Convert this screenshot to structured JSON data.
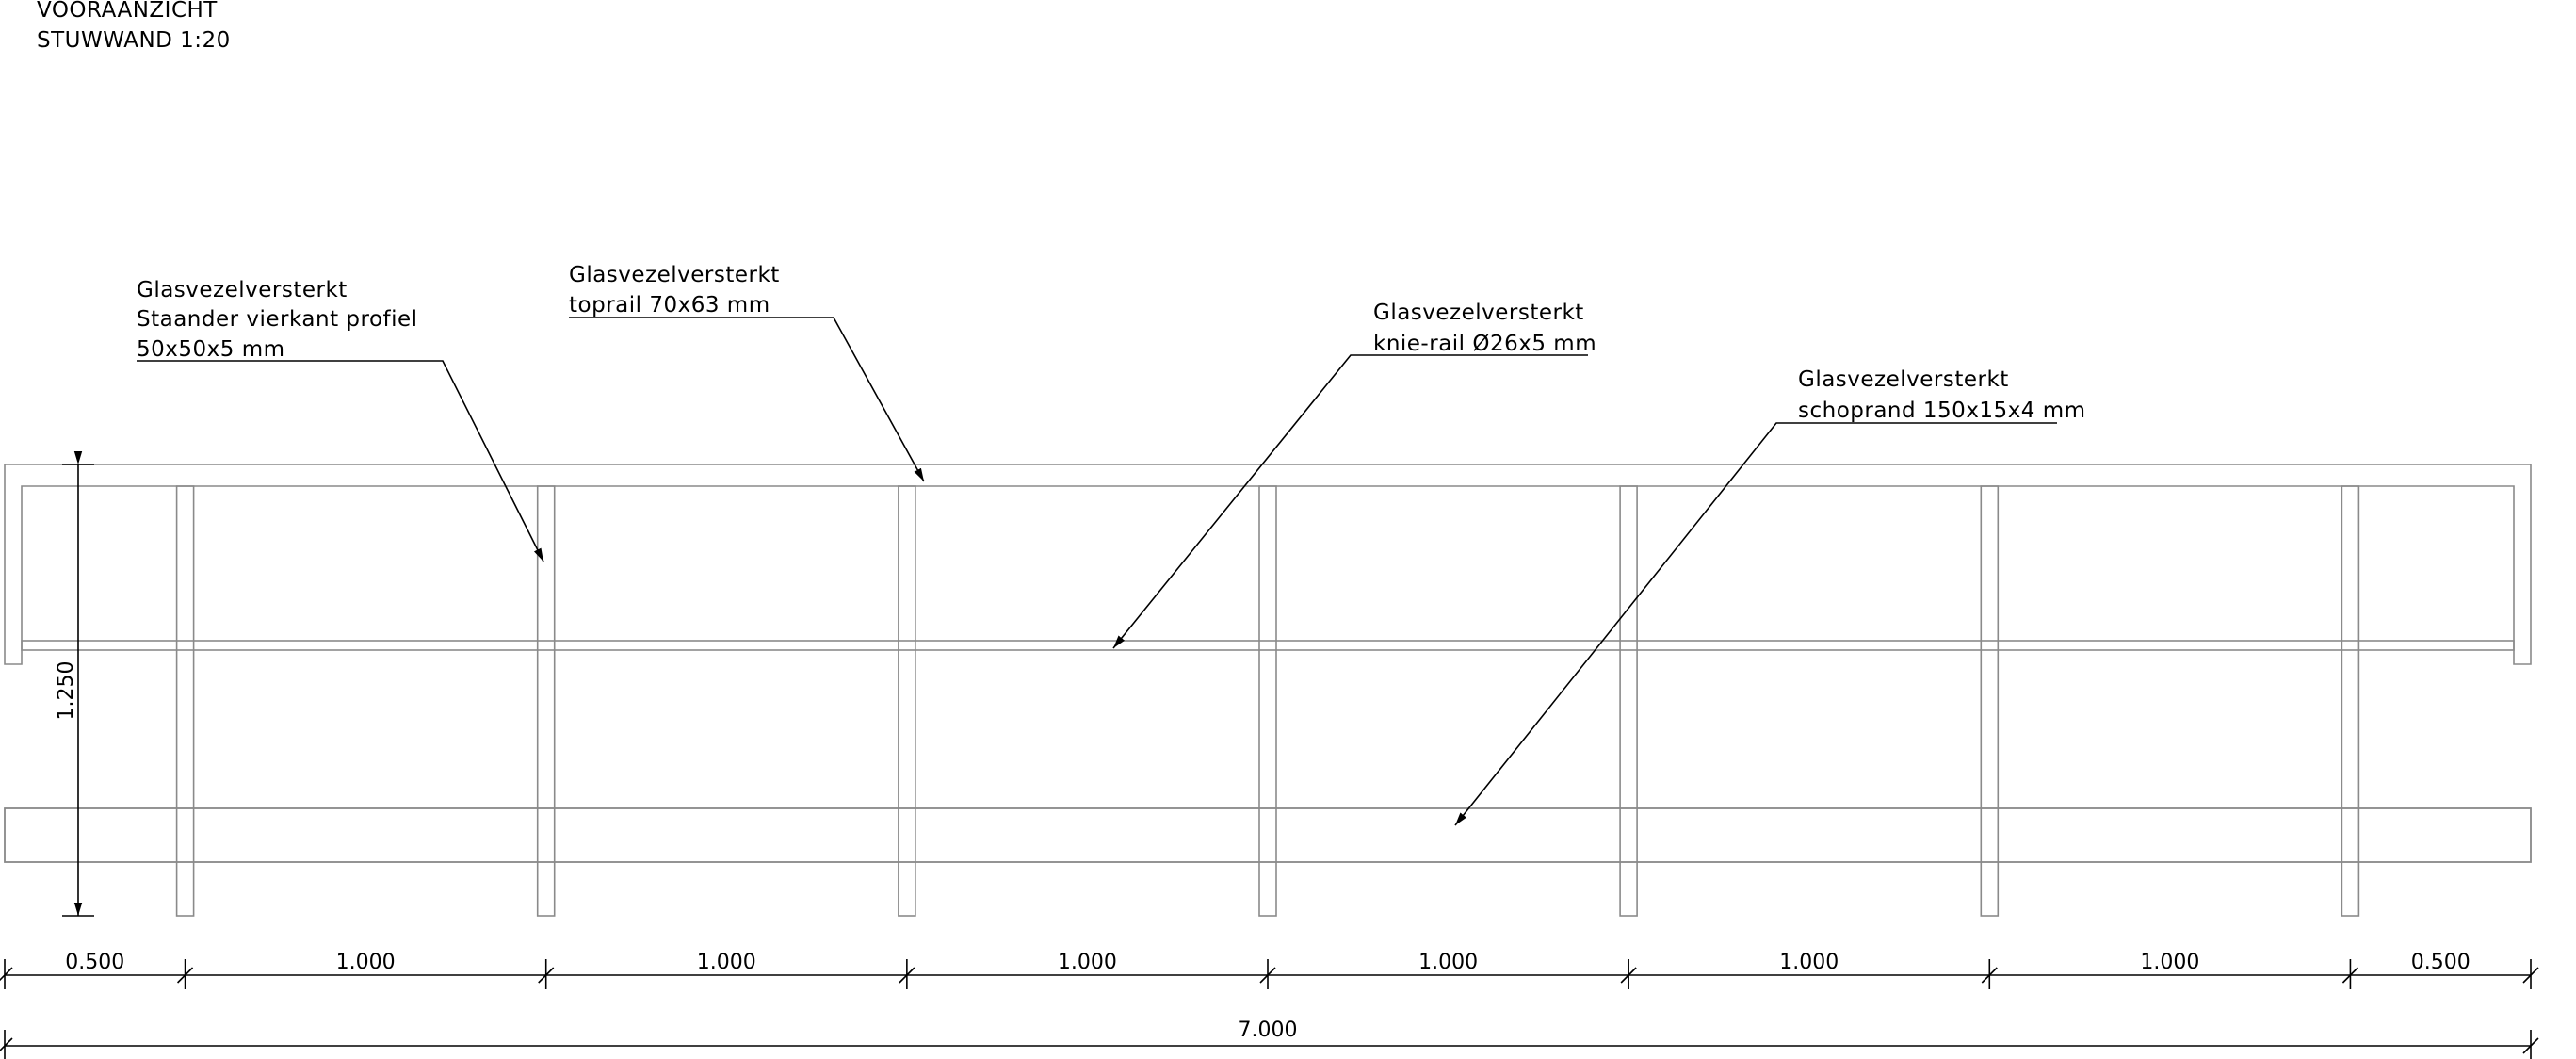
{
  "title": {
    "line1": "VOORAANZICHT",
    "line2": "STUWWAND 1:20"
  },
  "annotations": {
    "post": {
      "line1": "Glasvezelversterkt",
      "line2": "Staander vierkant profiel",
      "line3": "50x50x5 mm"
    },
    "toprail": {
      "line1": "Glasvezelversterkt",
      "line2": "toprail 70x63 mm"
    },
    "kneerail": {
      "line1": "Glasvezelversterkt",
      "line2": "knie-rail Ø26x5 mm"
    },
    "toeboard": {
      "line1": "Glasvezelversterkt",
      "line2": "schoprand 150x15x4 mm"
    }
  },
  "dimensions": {
    "height_label": "1.250",
    "spacing_labels": [
      "0.500",
      "1.000",
      "1.000",
      "1.000",
      "1.000",
      "1.000",
      "1.000",
      "0.500"
    ],
    "total_label": "7.000"
  },
  "colors": {
    "outline": "#8a8a8a",
    "ink": "#000000"
  }
}
